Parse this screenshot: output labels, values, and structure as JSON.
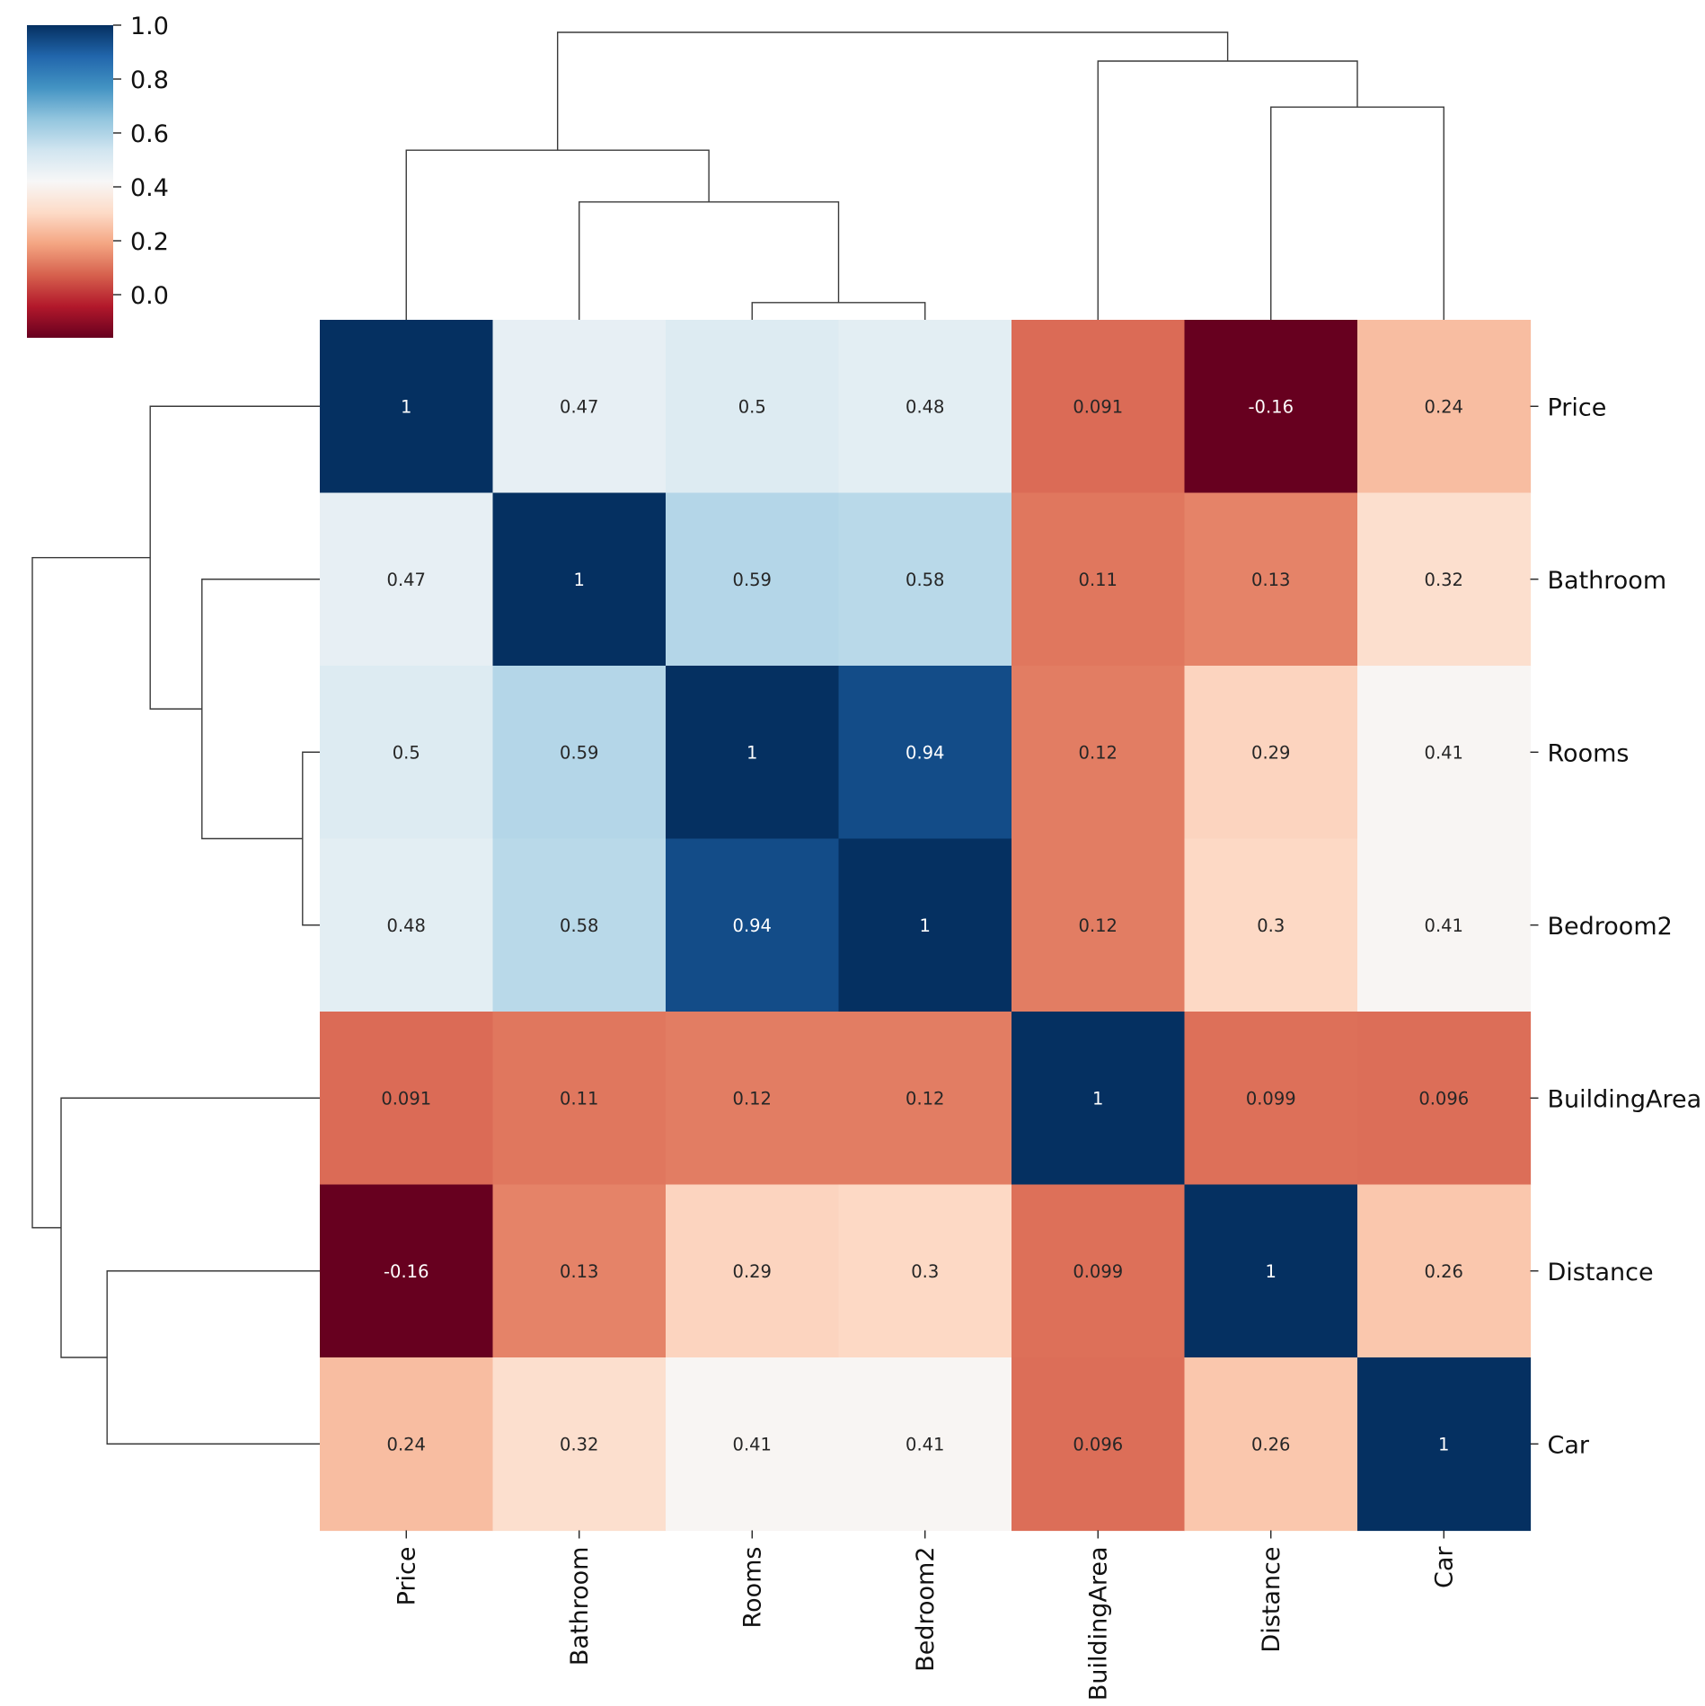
{
  "chart_data": {
    "type": "heatmap",
    "subtype": "clustermap",
    "labels": [
      "Price",
      "Bathroom",
      "Rooms",
      "Bedroom2",
      "BuildingArea",
      "Distance",
      "Car"
    ],
    "values": [
      [
        1,
        0.47,
        0.5,
        0.48,
        0.091,
        -0.16,
        0.24
      ],
      [
        0.47,
        1,
        0.59,
        0.58,
        0.11,
        0.13,
        0.32
      ],
      [
        0.5,
        0.59,
        1,
        0.94,
        0.12,
        0.29,
        0.41
      ],
      [
        0.48,
        0.58,
        0.94,
        1,
        0.12,
        0.3,
        0.41
      ],
      [
        0.091,
        0.11,
        0.12,
        0.12,
        1,
        0.099,
        0.096
      ],
      [
        -0.16,
        0.13,
        0.29,
        0.3,
        0.099,
        1,
        0.26
      ],
      [
        0.24,
        0.32,
        0.41,
        0.41,
        0.096,
        0.26,
        1
      ]
    ],
    "annotations": [
      [
        "1",
        "0.47",
        "0.5",
        "0.48",
        "0.091",
        "-0.16",
        "0.24"
      ],
      [
        "0.47",
        "1",
        "0.59",
        "0.58",
        "0.11",
        "0.13",
        "0.32"
      ],
      [
        "0.5",
        "0.59",
        "1",
        "0.94",
        "0.12",
        "0.29",
        "0.41"
      ],
      [
        "0.48",
        "0.58",
        "0.94",
        "1",
        "0.12",
        "0.3",
        "0.41"
      ],
      [
        "0.091",
        "0.11",
        "0.12",
        "0.12",
        "1",
        "0.099",
        "0.096"
      ],
      [
        "-0.16",
        "0.13",
        "0.29",
        "0.3",
        "0.099",
        "1",
        "0.26"
      ],
      [
        "0.24",
        "0.32",
        "0.41",
        "0.41",
        "0.096",
        "0.26",
        "1"
      ]
    ],
    "colormap": "RdBu",
    "vmin": -0.16,
    "vmax": 1.0,
    "colorbar": {
      "ticks": [
        0.0,
        0.2,
        0.4,
        0.6,
        0.8,
        1.0
      ],
      "tick_labels": [
        "0.0",
        "0.2",
        "0.4",
        "0.6",
        "0.8",
        "1.0"
      ],
      "placement": "top-left"
    },
    "dendrogram": {
      "merges": [
        {
          "a": 2,
          "b": 3,
          "height": 0.06
        },
        {
          "a": 1,
          "b": "m0",
          "height": 0.41
        },
        {
          "a": 0,
          "b": "m1",
          "height": 0.59
        },
        {
          "a": 5,
          "b": 6,
          "height": 0.74
        },
        {
          "a": 4,
          "b": "m3",
          "height": 0.9
        },
        {
          "a": "m2",
          "b": "m4",
          "height": 1.0
        }
      ]
    },
    "xlabel": "",
    "ylabel": "",
    "title": ""
  }
}
